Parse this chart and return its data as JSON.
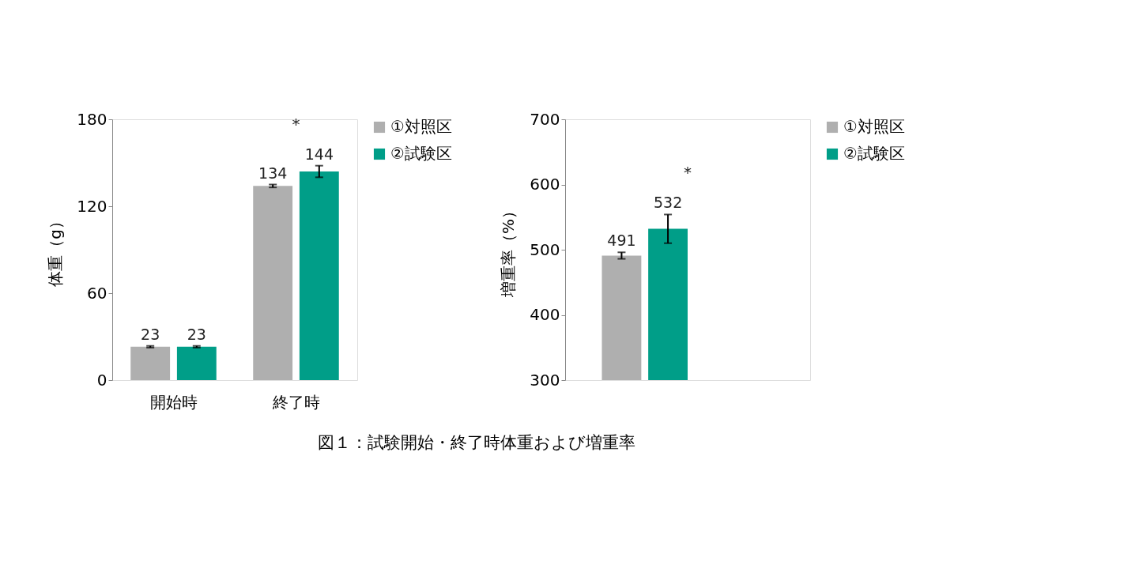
{
  "chart_data": [
    {
      "type": "bar",
      "ylabel": "体重（g）",
      "categories": [
        "開始時",
        "終了時"
      ],
      "series": [
        {
          "name": "①対照区",
          "color": "#afafaf",
          "values": [
            23,
            134
          ],
          "errors": [
            0.6,
            1
          ]
        },
        {
          "name": "②試験区",
          "color": "#009e88",
          "values": [
            23,
            144
          ],
          "errors": [
            0.6,
            4
          ]
        }
      ],
      "ylim": [
        0,
        180
      ],
      "yticks": [
        0,
        60,
        120,
        180
      ],
      "grid": false,
      "legend": "right",
      "data_labels": true,
      "annotations": [
        "*",
        "図１：試験開始・終了時体重および増重率"
      ]
    },
    {
      "type": "bar",
      "ylabel": "増重率（%）",
      "categories": [
        null
      ],
      "series": [
        {
          "name": "①対照区",
          "color": "#afafaf",
          "values": [
            491
          ],
          "errors": [
            5
          ]
        },
        {
          "name": "②試験区",
          "color": "#009e88",
          "values": [
            532
          ],
          "errors": [
            22
          ]
        }
      ],
      "ylim": [
        300,
        700
      ],
      "yticks": [
        300,
        400,
        500,
        600,
        700
      ],
      "grid": false,
      "legend": "right",
      "data_labels": true,
      "tick_labels": "y",
      "annotations": [
        "*"
      ]
    }
  ]
}
